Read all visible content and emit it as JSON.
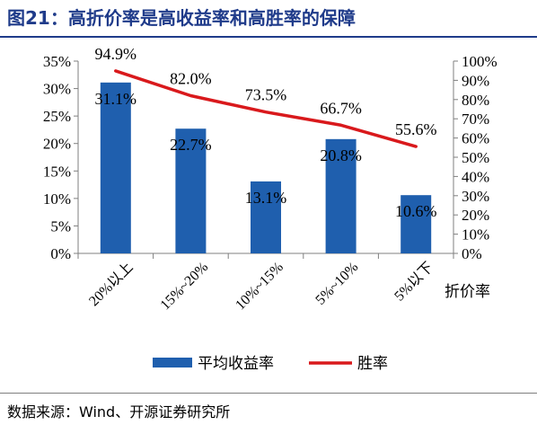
{
  "title": "图21：高折价率是高收益率和高胜率的保障",
  "source": "数据来源：Wind、开源证券研究所",
  "colors": {
    "bar": "#1f5fae",
    "line": "#d9191c",
    "title": "#1f3b8a"
  },
  "chart_data": {
    "type": "bar+line",
    "categories": [
      "20%以上",
      "15%~20%",
      "10%~15%",
      "5%~10%",
      "5%以下"
    ],
    "xlabel": "折价率",
    "series": [
      {
        "name": "平均收益率",
        "type": "bar",
        "axis": "left",
        "values": [
          31.1,
          22.7,
          13.1,
          20.8,
          10.6
        ],
        "labels": [
          "31.1%",
          "22.7%",
          "13.1%",
          "20.8%",
          "10.6%"
        ]
      },
      {
        "name": "胜率",
        "type": "line",
        "axis": "right",
        "values": [
          94.9,
          82.0,
          73.5,
          66.7,
          55.6
        ],
        "labels": [
          "94.9%",
          "82.0%",
          "73.5%",
          "66.7%",
          "55.6%"
        ]
      }
    ],
    "y_left": {
      "min": 0,
      "max": 35,
      "step": 5,
      "ticks": [
        "0%",
        "5%",
        "10%",
        "15%",
        "20%",
        "25%",
        "30%",
        "35%"
      ]
    },
    "y_right": {
      "min": 0,
      "max": 100,
      "step": 10,
      "ticks": [
        "0%",
        "10%",
        "20%",
        "30%",
        "40%",
        "50%",
        "60%",
        "70%",
        "80%",
        "90%",
        "100%"
      ]
    },
    "legend_position": "bottom",
    "grid": false
  }
}
